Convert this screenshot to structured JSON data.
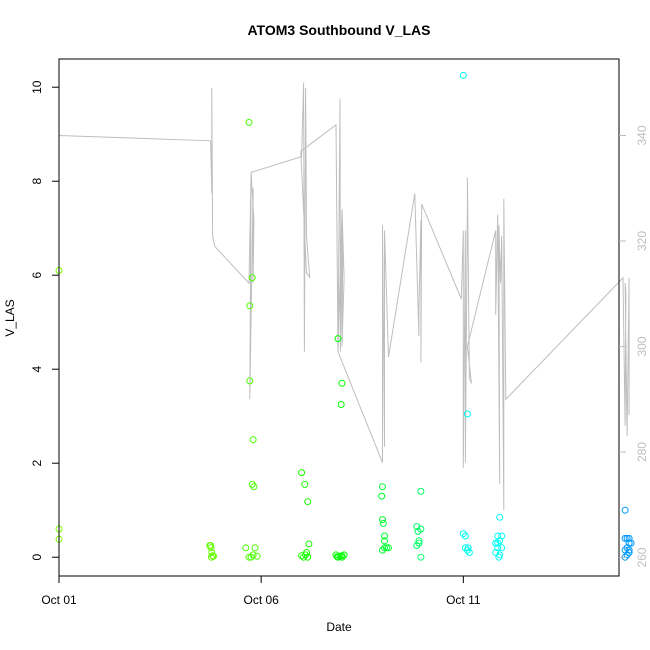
{
  "chart_data": {
    "type": "scatter",
    "title": "ATOM3 Southbound V_LAS",
    "xlabel": "Date",
    "ylabel": "V_LAS",
    "xlim": [
      0,
      13.85
    ],
    "ylim": [
      -0.4,
      10.6
    ],
    "y2lim": [
      256.5,
      354.5
    ],
    "x_ticks": [
      0,
      5,
      10
    ],
    "x_tick_labels": [
      "Oct 01",
      "Oct 06",
      "Oct 11"
    ],
    "y_ticks": [
      0,
      2,
      4,
      6,
      8,
      10
    ],
    "y2_ticks": [
      260,
      280,
      300,
      320,
      340
    ],
    "colors": {
      "line": "#bebebe",
      "axis": "#000000",
      "secondary_axis": "#bebebe"
    },
    "grid": false,
    "legend": "none",
    "points": [
      {
        "x": 0.0,
        "y": 6.1,
        "color": "#80ff00"
      },
      {
        "x": 0.0,
        "y": 0.6,
        "color": "#80ff00"
      },
      {
        "x": 0.0,
        "y": 0.38,
        "color": "#80ff00"
      },
      {
        "x": 3.75,
        "y": 0.25,
        "color": "#66ff00"
      },
      {
        "x": 3.76,
        "y": 0.2,
        "color": "#66ff00"
      },
      {
        "x": 3.78,
        "y": 0.1,
        "color": "#66ff00"
      },
      {
        "x": 3.8,
        "y": 0.03,
        "color": "#66ff00"
      },
      {
        "x": 3.73,
        "y": 0.25,
        "color": "#66ff00"
      },
      {
        "x": 3.77,
        "y": 0.0,
        "color": "#66ff00"
      },
      {
        "x": 3.82,
        "y": 0.02,
        "color": "#66ff00"
      },
      {
        "x": 4.7,
        "y": 9.25,
        "color": "#4dff00"
      },
      {
        "x": 4.72,
        "y": 5.35,
        "color": "#4dff00"
      },
      {
        "x": 4.78,
        "y": 5.95,
        "color": "#4dff00"
      },
      {
        "x": 4.72,
        "y": 3.75,
        "color": "#4dff00"
      },
      {
        "x": 4.8,
        "y": 2.5,
        "color": "#4dff00"
      },
      {
        "x": 4.78,
        "y": 1.55,
        "color": "#4dff00"
      },
      {
        "x": 4.82,
        "y": 1.5,
        "color": "#4dff00"
      },
      {
        "x": 4.62,
        "y": 0.2,
        "color": "#4dff00"
      },
      {
        "x": 4.85,
        "y": 0.2,
        "color": "#4dff00"
      },
      {
        "x": 4.75,
        "y": 0.0,
        "color": "#4dff00"
      },
      {
        "x": 4.8,
        "y": 0.05,
        "color": "#4dff00"
      },
      {
        "x": 4.7,
        "y": 0.0,
        "color": "#4dff00"
      },
      {
        "x": 4.9,
        "y": 0.02,
        "color": "#4dff00"
      },
      {
        "x": 6.0,
        "y": 1.8,
        "color": "#1aff00"
      },
      {
        "x": 6.08,
        "y": 1.55,
        "color": "#1aff00"
      },
      {
        "x": 6.15,
        "y": 1.18,
        "color": "#1aff00"
      },
      {
        "x": 6.18,
        "y": 0.28,
        "color": "#1aff00"
      },
      {
        "x": 6.05,
        "y": 0.0,
        "color": "#1aff00"
      },
      {
        "x": 6.12,
        "y": 0.1,
        "color": "#1aff00"
      },
      {
        "x": 6.0,
        "y": 0.03,
        "color": "#1aff00"
      },
      {
        "x": 6.1,
        "y": 0.05,
        "color": "#1aff00"
      },
      {
        "x": 6.15,
        "y": 0.0,
        "color": "#1aff00"
      },
      {
        "x": 6.9,
        "y": 4.65,
        "color": "#00ff00"
      },
      {
        "x": 7.0,
        "y": 3.7,
        "color": "#00ff00"
      },
      {
        "x": 6.98,
        "y": 3.25,
        "color": "#00ff00"
      },
      {
        "x": 6.85,
        "y": 0.05,
        "color": "#00ff00"
      },
      {
        "x": 6.9,
        "y": 0.0,
        "color": "#00ff00"
      },
      {
        "x": 6.95,
        "y": 0.02,
        "color": "#00ff00"
      },
      {
        "x": 7.0,
        "y": 0.0,
        "color": "#00ff00"
      },
      {
        "x": 7.05,
        "y": 0.05,
        "color": "#00ff00"
      },
      {
        "x": 7.0,
        "y": 0.03,
        "color": "#00ff00"
      },
      {
        "x": 6.88,
        "y": 0.01,
        "color": "#00ff00"
      },
      {
        "x": 8.0,
        "y": 1.5,
        "color": "#00ff33"
      },
      {
        "x": 7.98,
        "y": 1.3,
        "color": "#00ff33"
      },
      {
        "x": 8.0,
        "y": 0.8,
        "color": "#00ff33"
      },
      {
        "x": 8.02,
        "y": 0.72,
        "color": "#00ff33"
      },
      {
        "x": 8.05,
        "y": 0.45,
        "color": "#00ff33"
      },
      {
        "x": 8.05,
        "y": 0.35,
        "color": "#00ff33"
      },
      {
        "x": 8.15,
        "y": 0.2,
        "color": "#00ff33"
      },
      {
        "x": 8.0,
        "y": 0.15,
        "color": "#00ff33"
      },
      {
        "x": 8.1,
        "y": 0.2,
        "color": "#00ff33"
      },
      {
        "x": 8.05,
        "y": 0.2,
        "color": "#00ff33"
      },
      {
        "x": 8.95,
        "y": 1.4,
        "color": "#00ff66"
      },
      {
        "x": 8.85,
        "y": 0.65,
        "color": "#00ff66"
      },
      {
        "x": 8.88,
        "y": 0.55,
        "color": "#00ff66"
      },
      {
        "x": 8.95,
        "y": 0.6,
        "color": "#00ff66"
      },
      {
        "x": 8.9,
        "y": 0.35,
        "color": "#00ff66"
      },
      {
        "x": 8.85,
        "y": 0.25,
        "color": "#00ff66"
      },
      {
        "x": 8.9,
        "y": 0.3,
        "color": "#00ff66"
      },
      {
        "x": 8.95,
        "y": 0.0,
        "color": "#00ff66"
      },
      {
        "x": 10.0,
        "y": 10.25,
        "color": "#00ffee"
      },
      {
        "x": 10.1,
        "y": 3.05,
        "color": "#00ffee"
      },
      {
        "x": 10.0,
        "y": 0.5,
        "color": "#00ffee"
      },
      {
        "x": 10.05,
        "y": 0.45,
        "color": "#00ffee"
      },
      {
        "x": 10.05,
        "y": 0.2,
        "color": "#00ffee"
      },
      {
        "x": 10.1,
        "y": 0.15,
        "color": "#00ffee"
      },
      {
        "x": 10.15,
        "y": 0.1,
        "color": "#00ffee"
      },
      {
        "x": 10.12,
        "y": 0.2,
        "color": "#00ffee"
      },
      {
        "x": 10.9,
        "y": 0.85,
        "color": "#00fff6"
      },
      {
        "x": 10.8,
        "y": 0.3,
        "color": "#00fff6"
      },
      {
        "x": 10.85,
        "y": 0.2,
        "color": "#00fff6"
      },
      {
        "x": 10.9,
        "y": 0.35,
        "color": "#00fff6"
      },
      {
        "x": 10.95,
        "y": 0.45,
        "color": "#00fff6"
      },
      {
        "x": 10.85,
        "y": 0.45,
        "color": "#00fff6"
      },
      {
        "x": 10.9,
        "y": 0.05,
        "color": "#00fff6"
      },
      {
        "x": 10.95,
        "y": 0.2,
        "color": "#00fff6"
      },
      {
        "x": 10.8,
        "y": 0.1,
        "color": "#00fff6"
      },
      {
        "x": 10.88,
        "y": 0.0,
        "color": "#00fff6"
      },
      {
        "x": 10.85,
        "y": 0.3,
        "color": "#00fff6"
      },
      {
        "x": 14.0,
        "y": 1.0,
        "color": "#0099ff"
      },
      {
        "x": 14.0,
        "y": 0.4,
        "color": "#0099ff"
      },
      {
        "x": 14.05,
        "y": 0.4,
        "color": "#0099ff"
      },
      {
        "x": 14.1,
        "y": 0.4,
        "color": "#0099ff"
      },
      {
        "x": 14.1,
        "y": 0.3,
        "color": "#0099ff"
      },
      {
        "x": 14.15,
        "y": 0.3,
        "color": "#0099ff"
      },
      {
        "x": 14.05,
        "y": 0.2,
        "color": "#0099ff"
      },
      {
        "x": 14.0,
        "y": 0.15,
        "color": "#0099ff"
      },
      {
        "x": 14.1,
        "y": 0.1,
        "color": "#0099ff"
      },
      {
        "x": 14.05,
        "y": 0.05,
        "color": "#0099ff"
      },
      {
        "x": 14.0,
        "y": 0.0,
        "color": "#0099ff"
      },
      {
        "x": 14.1,
        "y": 0.15,
        "color": "#0099ff"
      }
    ],
    "line_series_y2": [
      [
        0.0,
        279
      ],
      [
        0.0,
        340
      ],
      [
        3.75,
        339
      ],
      [
        3.78,
        329
      ],
      [
        3.78,
        349
      ],
      [
        3.8,
        321
      ],
      [
        3.85,
        319
      ],
      [
        4.7,
        312
      ],
      [
        4.75,
        333
      ],
      [
        4.72,
        290
      ],
      [
        4.8,
        330
      ],
      [
        4.8,
        312
      ],
      [
        4.82,
        324
      ],
      [
        4.75,
        333
      ],
      [
        6.0,
        336
      ],
      [
        6.05,
        350
      ],
      [
        6.07,
        299
      ],
      [
        6.1,
        349
      ],
      [
        6.12,
        321
      ],
      [
        6.2,
        313
      ],
      [
        6.12,
        314
      ],
      [
        5.98,
        337
      ],
      [
        6.85,
        342
      ],
      [
        6.9,
        299
      ],
      [
        6.95,
        347
      ],
      [
        6.96,
        299
      ],
      [
        7.0,
        325
      ],
      [
        7.0,
        303
      ],
      [
        7.02,
        320
      ],
      [
        7.0,
        300
      ],
      [
        7.0,
        300
      ],
      [
        7.05,
        313
      ],
      [
        7.0,
        326
      ],
      [
        6.9,
        299
      ],
      [
        8.0,
        278
      ],
      [
        8.0,
        323
      ],
      [
        8.05,
        281
      ],
      [
        8.05,
        322
      ],
      [
        8.15,
        298
      ],
      [
        8.8,
        329
      ],
      [
        8.9,
        302
      ],
      [
        8.9,
        307
      ],
      [
        8.95,
        324
      ],
      [
        8.95,
        297
      ],
      [
        8.97,
        327
      ],
      [
        9.95,
        309
      ],
      [
        10.0,
        322
      ],
      [
        10.0,
        277
      ],
      [
        10.05,
        322
      ],
      [
        10.05,
        278
      ],
      [
        10.1,
        327
      ],
      [
        10.1,
        332
      ],
      [
        10.15,
        294
      ],
      [
        10.2,
        293
      ],
      [
        10.1,
        300
      ],
      [
        10.8,
        322
      ],
      [
        10.8,
        306
      ],
      [
        10.85,
        325
      ],
      [
        10.9,
        274
      ],
      [
        10.88,
        323
      ],
      [
        10.92,
        312
      ],
      [
        10.95,
        321
      ],
      [
        11.0,
        269
      ],
      [
        11.0,
        304
      ],
      [
        11.0,
        328
      ],
      [
        11.05,
        290
      ],
      [
        13.95,
        313
      ],
      [
        14.0,
        285
      ],
      [
        14.02,
        310
      ],
      [
        14.0,
        312
      ],
      [
        14.05,
        283
      ],
      [
        14.1,
        313
      ],
      [
        14.1,
        287
      ]
    ]
  }
}
